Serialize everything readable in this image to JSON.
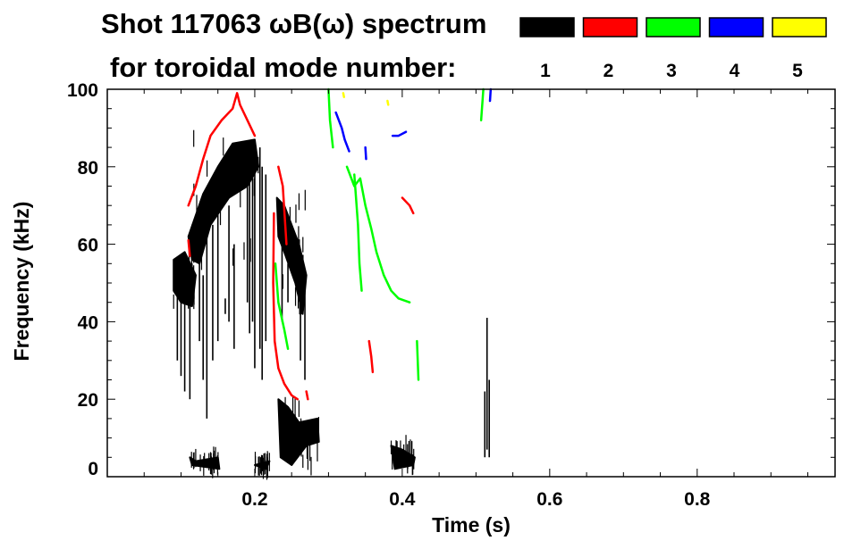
{
  "chart_data": {
    "type": "heatmap",
    "title_line1": "Shot 117063 ωB(ω) spectrum",
    "title_line2": "for toroidal mode number:",
    "xlabel": "Time (s)",
    "ylabel": "Frequency (kHz)",
    "xlim": [
      0,
      0.987
    ],
    "ylim": [
      0,
      100
    ],
    "xticks": [
      "0.2",
      "0.4",
      "0.6",
      "0.8"
    ],
    "xtick_values": [
      0.2,
      0.4,
      0.6,
      0.8
    ],
    "yticks": [
      "0",
      "20",
      "40",
      "60",
      "80",
      "100"
    ],
    "ytick_values": [
      0,
      20,
      40,
      60,
      80,
      100
    ],
    "legend_placement": "top-right",
    "series": [
      {
        "name": "1",
        "color": "#000000",
        "blobs": [
          [
            [
              0.09,
              56
            ],
            [
              0.105,
              58
            ],
            [
              0.12,
              52
            ],
            [
              0.115,
              44
            ],
            [
              0.1,
              45
            ],
            [
              0.09,
              48
            ]
          ],
          [
            [
              0.11,
              62
            ],
            [
              0.13,
              73
            ],
            [
              0.15,
              80
            ],
            [
              0.17,
              86
            ],
            [
              0.2,
              87
            ],
            [
              0.205,
              80
            ],
            [
              0.19,
              75
            ],
            [
              0.165,
              72
            ],
            [
              0.14,
              65
            ],
            [
              0.125,
              55
            ],
            [
              0.115,
              56
            ]
          ],
          [
            [
              0.23,
              72
            ],
            [
              0.24,
              70
            ],
            [
              0.26,
              60
            ],
            [
              0.27,
              52
            ],
            [
              0.265,
              42
            ],
            [
              0.255,
              50
            ],
            [
              0.24,
              58
            ],
            [
              0.232,
              62
            ]
          ],
          [
            [
              0.232,
              20
            ],
            [
              0.245,
              18
            ],
            [
              0.26,
              14
            ],
            [
              0.285,
              15
            ],
            [
              0.287,
              9
            ],
            [
              0.27,
              8
            ],
            [
              0.25,
              3
            ],
            [
              0.235,
              5
            ]
          ],
          [
            [
              0.385,
              8
            ],
            [
              0.4,
              7
            ],
            [
              0.417,
              5
            ],
            [
              0.415,
              3
            ],
            [
              0.39,
              2
            ]
          ],
          [
            [
              0.112,
              5
            ],
            [
              0.12,
              4
            ],
            [
              0.15,
              5
            ],
            [
              0.152,
              2
            ],
            [
              0.115,
              3
            ]
          ],
          [
            [
              0.2,
              3
            ],
            [
              0.22,
              4
            ],
            [
              0.215,
              2
            ]
          ]
        ],
        "streaks": [
          [
            0.095,
            30,
            55
          ],
          [
            0.1,
            26,
            50
          ],
          [
            0.105,
            22,
            48
          ],
          [
            0.112,
            20,
            46
          ],
          [
            0.125,
            35,
            60
          ],
          [
            0.13,
            25,
            52
          ],
          [
            0.135,
            15,
            70
          ],
          [
            0.143,
            30,
            65
          ],
          [
            0.15,
            35,
            75
          ],
          [
            0.165,
            40,
            70
          ],
          [
            0.172,
            33,
            60
          ],
          [
            0.19,
            45,
            75
          ],
          [
            0.193,
            37,
            85
          ],
          [
            0.197,
            40,
            85
          ],
          [
            0.2,
            28,
            82
          ],
          [
            0.207,
            33,
            85
          ],
          [
            0.21,
            25,
            80
          ],
          [
            0.215,
            35,
            78
          ],
          [
            0.237,
            40,
            70
          ],
          [
            0.245,
            45,
            55
          ],
          [
            0.262,
            30,
            55
          ],
          [
            0.268,
            25,
            50
          ],
          [
            0.515,
            7,
            41
          ],
          [
            0.518,
            5,
            25
          ],
          [
            0.512,
            5,
            22
          ],
          [
            0.16,
            42,
            46
          ]
        ],
        "traces": []
      },
      {
        "name": "2",
        "color": "#ff0000",
        "blobs": [],
        "streaks": [],
        "traces": [
          [
            [
              0.11,
              70
            ],
            [
              0.12,
              75
            ],
            [
              0.13,
              82
            ],
            [
              0.14,
              88
            ],
            [
              0.155,
              92
            ],
            [
              0.17,
              95
            ],
            [
              0.176,
              99
            ],
            [
              0.18,
              96
            ],
            [
              0.19,
              92
            ],
            [
              0.2,
              88
            ]
          ],
          [
            [
              0.226,
              68
            ],
            [
              0.225,
              50
            ],
            [
              0.227,
              35
            ],
            [
              0.232,
              28
            ],
            [
              0.24,
              24
            ],
            [
              0.25,
              21
            ],
            [
              0.258,
              20
            ]
          ],
          [
            [
              0.232,
              80
            ],
            [
              0.238,
              75
            ],
            [
              0.243,
              60
            ]
          ],
          [
            [
              0.355,
              35
            ],
            [
              0.358,
              31
            ],
            [
              0.36,
              27
            ]
          ],
          [
            [
              0.4,
              72
            ],
            [
              0.41,
              70
            ],
            [
              0.415,
              68
            ]
          ],
          [
            [
              0.27,
              22
            ],
            [
              0.272,
              20
            ]
          ],
          [
            [
              0.11,
              61
            ],
            [
              0.112,
              57
            ]
          ]
        ]
      },
      {
        "name": "3",
        "color": "#00ff00",
        "blobs": [],
        "streaks": [],
        "traces": [
          [
            [
              0.325,
              80
            ],
            [
              0.335,
              75
            ],
            [
              0.343,
              77
            ],
            [
              0.35,
              70
            ],
            [
              0.358,
              64
            ],
            [
              0.365,
              58
            ],
            [
              0.375,
              52
            ],
            [
              0.385,
              48
            ],
            [
              0.395,
              46
            ],
            [
              0.41,
              45
            ]
          ],
          [
            [
              0.3,
              100
            ],
            [
              0.302,
              92
            ],
            [
              0.306,
              85
            ]
          ],
          [
            [
              0.228,
              55
            ],
            [
              0.232,
              45
            ],
            [
              0.24,
              38
            ],
            [
              0.245,
              33
            ]
          ],
          [
            [
              0.335,
              78
            ],
            [
              0.34,
              65
            ],
            [
              0.342,
              55
            ],
            [
              0.345,
              48
            ]
          ],
          [
            [
              0.507,
              92
            ],
            [
              0.51,
              100
            ]
          ],
          [
            [
              0.42,
              35
            ],
            [
              0.422,
              25
            ]
          ]
        ]
      },
      {
        "name": "4",
        "color": "#0000ff",
        "blobs": [],
        "streaks": [],
        "traces": [
          [
            [
              0.31,
              94
            ],
            [
              0.318,
              90
            ],
            [
              0.322,
              87
            ],
            [
              0.328,
              84
            ]
          ],
          [
            [
              0.387,
              88
            ],
            [
              0.395,
              88
            ],
            [
              0.405,
              89
            ]
          ],
          [
            [
              0.519,
              97
            ],
            [
              0.52,
              100
            ]
          ],
          [
            [
              0.35,
              85
            ],
            [
              0.351,
              82
            ]
          ]
        ]
      },
      {
        "name": "5",
        "color": "#ffff00",
        "blobs": [],
        "streaks": [],
        "traces": [
          [
            [
              0.32,
              99
            ],
            [
              0.321,
              98
            ]
          ],
          [
            [
              0.38,
              97
            ],
            [
              0.381,
              96
            ]
          ]
        ]
      }
    ]
  }
}
